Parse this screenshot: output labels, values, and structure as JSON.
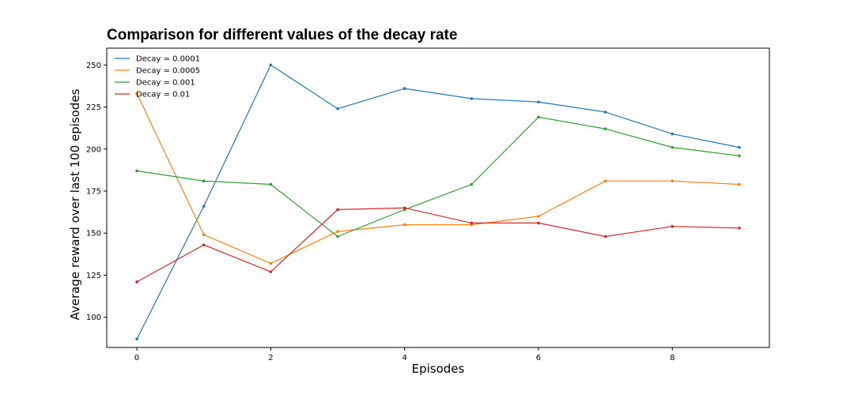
{
  "chart_data": {
    "type": "line",
    "title": "Comparison for different values of the decay rate",
    "xlabel": "Episodes",
    "ylabel": "Average reward over last 100 episodes",
    "x": [
      0,
      1,
      2,
      3,
      4,
      5,
      6,
      7,
      8,
      9
    ],
    "xlim": [
      -0.45,
      9.45
    ],
    "ylim": [
      82,
      260
    ],
    "xticks": [
      0,
      2,
      4,
      6,
      8
    ],
    "yticks": [
      100,
      125,
      150,
      175,
      200,
      225,
      250
    ],
    "grid": false,
    "legend_position": "top-left",
    "series": [
      {
        "name": "Decay = 0.0001",
        "color": "#1f77b4",
        "values": [
          87,
          166,
          250,
          224,
          236,
          230,
          228,
          222,
          209,
          201
        ]
      },
      {
        "name": "Decay = 0.0005",
        "color": "#ff7f0e",
        "values": [
          233,
          149,
          132,
          151,
          155,
          155,
          160,
          181,
          181,
          179
        ]
      },
      {
        "name": "Decay = 0.001",
        "color": "#2ca02c",
        "values": [
          187,
          181,
          179,
          148,
          164,
          179,
          219,
          212,
          201,
          196
        ]
      },
      {
        "name": "Decay = 0.01",
        "color": "#d62728",
        "values": [
          121,
          143,
          127,
          164,
          165,
          156,
          156,
          148,
          154,
          153
        ]
      }
    ]
  }
}
